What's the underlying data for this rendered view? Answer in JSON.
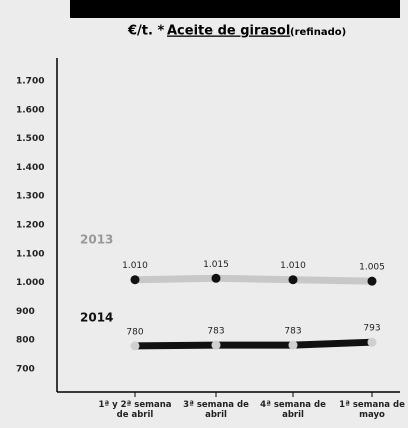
{
  "chart_data": {
    "type": "line",
    "unit": "€/t. *",
    "title": "Aceite de girasol",
    "subtitle": "(refinado)",
    "categories": [
      "1ª y 2ª semana de abril",
      "3ª semana de abril",
      "4ª semana de abril",
      "1ª semana de mayo"
    ],
    "series": [
      {
        "name": "2013",
        "color": "#c8c8c8",
        "marker_color": "#111111",
        "values": [
          1010,
          1015,
          1010,
          1005
        ],
        "value_labels": [
          "1.010",
          "1.015",
          "1.010",
          "1.005"
        ]
      },
      {
        "name": "2014",
        "color": "#111111",
        "marker_color": "#d0d0d0",
        "values": [
          780,
          783,
          783,
          793
        ]
      }
    ],
    "ylim": [
      620,
      1780
    ],
    "yticks": [
      700,
      800,
      900,
      {
        "value": 1000,
        "label": "1.000"
      },
      {
        "value": 1100,
        "label": "1.100"
      },
      {
        "value": 1200,
        "label": "1.200"
      },
      {
        "value": 1300,
        "label": "1.300"
      },
      {
        "value": 1400,
        "label": "1.400"
      },
      {
        "value": 1500,
        "label": "1.500"
      },
      {
        "value": 1600,
        "label": "1.600"
      },
      {
        "value": 1700,
        "label": "1.700"
      }
    ]
  }
}
